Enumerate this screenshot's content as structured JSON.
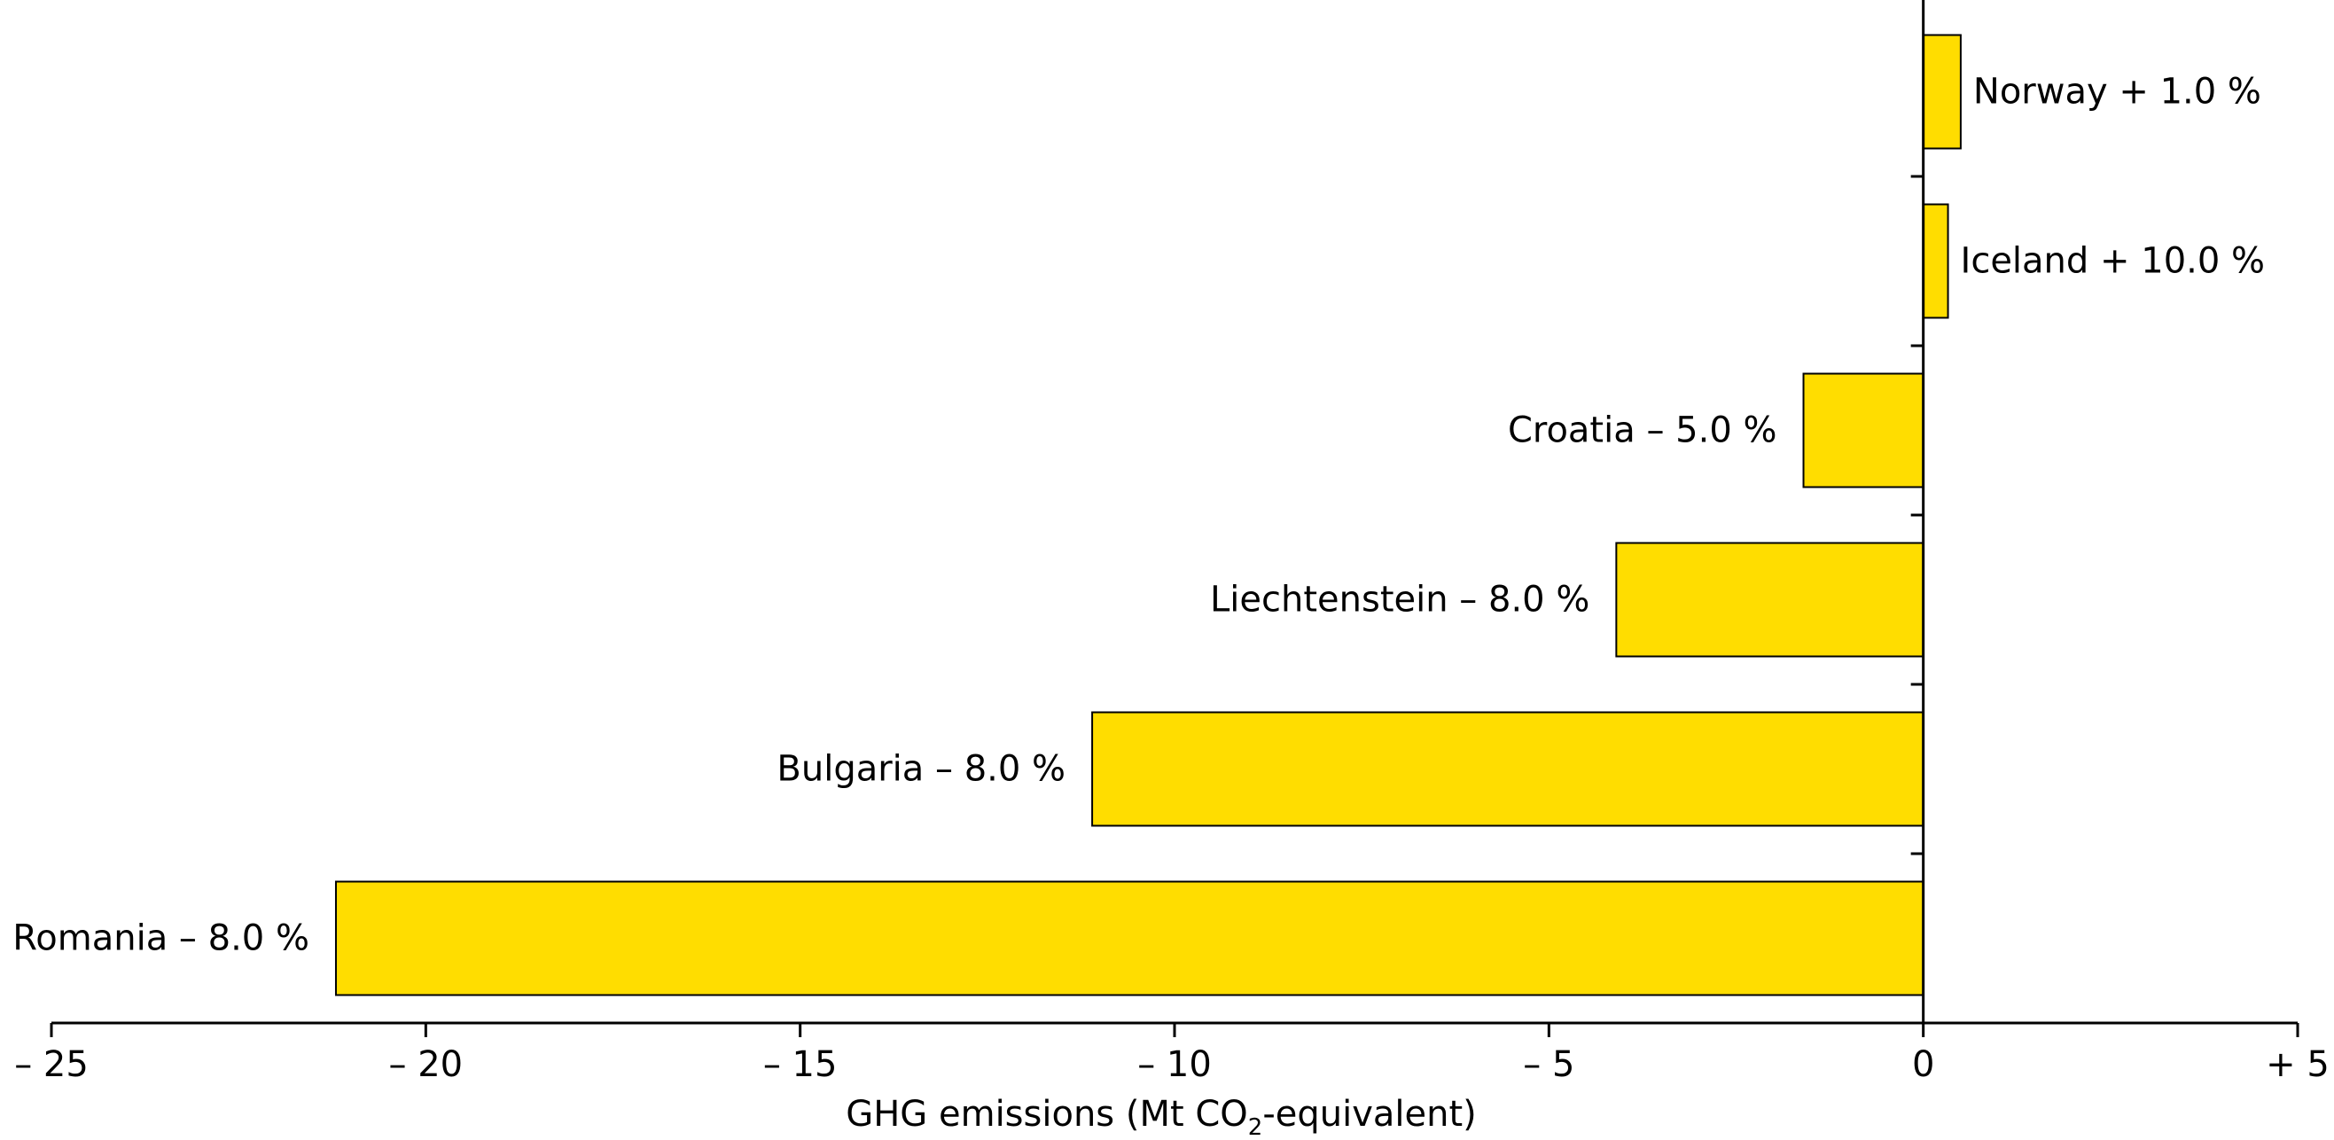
{
  "chart_data": {
    "type": "bar",
    "orientation": "horizontal",
    "categories": [
      "Norway",
      "Iceland",
      "Croatia",
      "Liechtenstein",
      "Bulgaria",
      "Romania"
    ],
    "values": [
      0.5,
      0.33,
      -1.6,
      -4.1,
      -11.1,
      -21.2
    ],
    "bar_labels": [
      "Norway + 1.0 %",
      "Iceland + 10.0 %",
      "Croatia – 5.0 %",
      "Liechtenstein – 8.0 %",
      "Bulgaria – 8.0 %",
      "Romania – 8.0 %"
    ],
    "xlabel": {
      "prefix": "GHG emissions (Mt CO",
      "subscript": "2",
      "suffix": "-equivalent)"
    },
    "xlim": [
      -25,
      5
    ],
    "xticks": [
      -25,
      -20,
      -15,
      -10,
      -5,
      0,
      5
    ],
    "xtick_labels": [
      "– 25",
      "– 20",
      "– 15",
      "– 10",
      "– 5",
      "0",
      "+ 5"
    ],
    "grid": false,
    "bar_color": "#FFDD00",
    "legend": "none"
  }
}
